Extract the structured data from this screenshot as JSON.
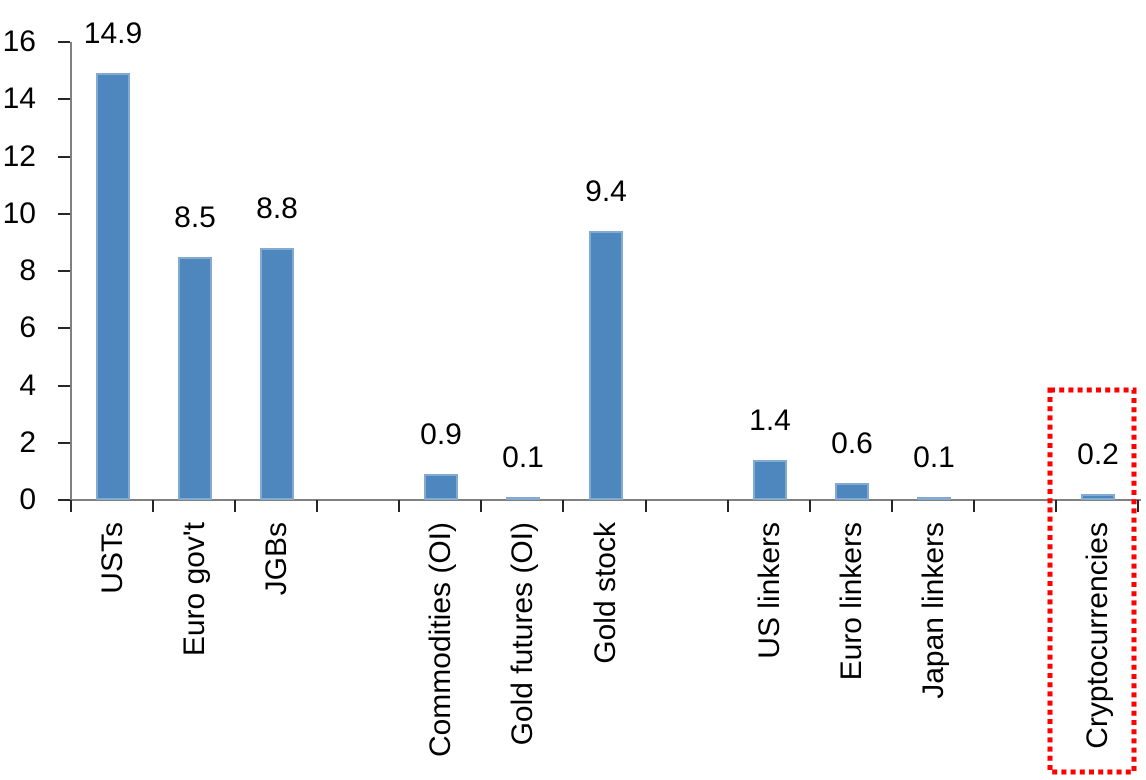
{
  "chart_data": {
    "type": "bar",
    "title": "",
    "xlabel": "",
    "ylabel": "",
    "categories": [
      "USTs",
      "Euro gov't",
      "JGBs",
      "",
      "Commodities (OI)",
      "Gold futures (OI)",
      "Gold stock",
      "",
      "US linkers",
      "Euro linkers",
      "Japan linkers",
      "",
      "Cryptocurrencies"
    ],
    "values": [
      14.9,
      8.5,
      8.8,
      null,
      0.9,
      0.1,
      9.4,
      null,
      1.4,
      0.6,
      0.1,
      null,
      0.2
    ],
    "data_labels": [
      "14.9",
      "8.5",
      "8.8",
      "",
      "0.9",
      "0.1",
      "9.4",
      "",
      "1.4",
      "0.6",
      "0.1",
      "",
      "0.2"
    ],
    "ylim": [
      0,
      16
    ],
    "yticks": [
      0,
      2,
      4,
      6,
      8,
      10,
      12,
      14,
      16
    ],
    "grid": false,
    "legend": "none",
    "bar_color": "#4E86BE",
    "axis_color": "#808080",
    "tick_color": "#262626",
    "text_color": "#000000",
    "highlight": {
      "label": "Cryptocurrencies",
      "index": 12,
      "style": "dotted-box",
      "color": "#FF0000"
    }
  }
}
